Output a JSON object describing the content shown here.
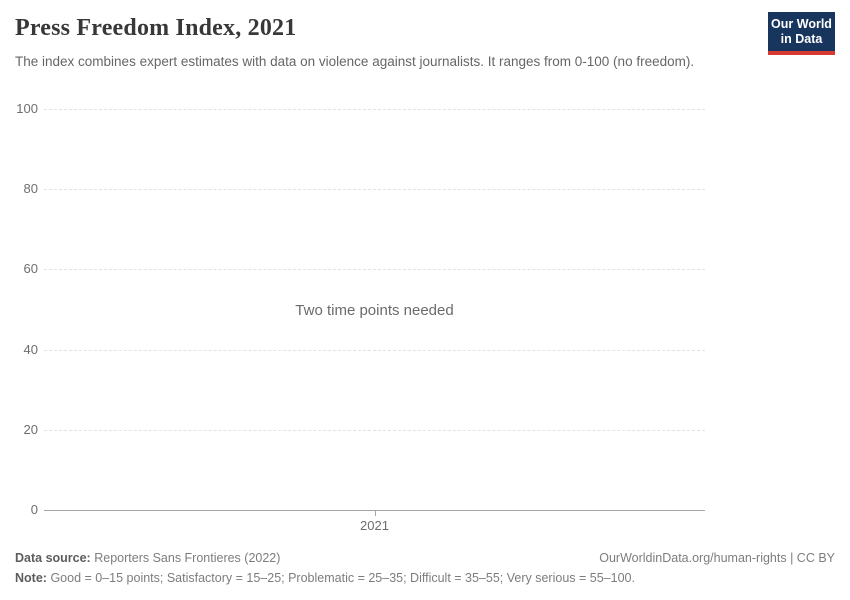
{
  "header": {
    "title": "Press Freedom Index, 2021",
    "subtitle": "The index combines expert estimates with data on violence against journalists. It ranges from 0-100 (no freedom).",
    "logo": {
      "line1": "Our World",
      "line2": "in Data",
      "bg_color": "#18365d",
      "accent_color": "#d73a32"
    }
  },
  "chart_data": {
    "type": "line",
    "title": "Press Freedom Index, 2021",
    "series": [],
    "message": "Two time points needed",
    "x_ticks": [
      "2021"
    ],
    "y_ticks": [
      0,
      20,
      40,
      60,
      80,
      100
    ],
    "ylim": [
      0,
      100
    ],
    "xlabel": "",
    "ylabel": "",
    "grid": "horizontal-dashed",
    "legend": "none"
  },
  "footer": {
    "data_source_label": "Data source:",
    "data_source": "Reporters Sans Frontieres (2022)",
    "note_label": "Note:",
    "note": "Good = 0–15 points; Satisfactory = 15–25; Problematic = 25–35; Difficult = 35–55; Very serious = 55–100.",
    "link": "OurWorldinData.org/human-rights | CC BY"
  }
}
